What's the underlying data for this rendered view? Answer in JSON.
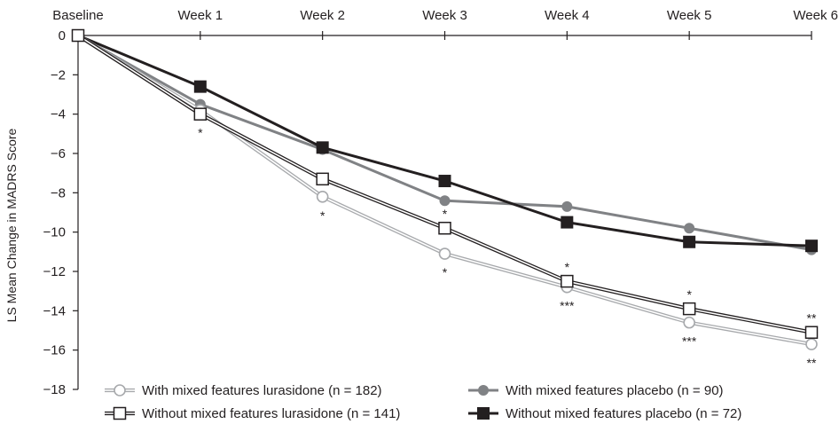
{
  "chart_data": {
    "type": "line",
    "title": "",
    "xlabel": "",
    "ylabel": "LS Mean Change in MADRS Score",
    "categories": [
      "Baseline",
      "Week 1",
      "Week 2",
      "Week 3",
      "Week 4",
      "Week 5",
      "Week 6"
    ],
    "ylim": [
      -18,
      0
    ],
    "yticks": [
      0,
      -2,
      -4,
      -6,
      -8,
      -10,
      -12,
      -14,
      -16,
      -18
    ],
    "ytick_labels": [
      "0",
      "−2",
      "−4",
      "−6",
      "−8",
      "−10",
      "−12",
      "−14",
      "−16",
      "−18"
    ],
    "grid": false,
    "legend_position": "bottom",
    "series": [
      {
        "name": "With mixed features lurasidone (n = 182)",
        "marker": "circle-open",
        "color": "#a7a9ac",
        "values": [
          0,
          -3.8,
          -8.2,
          -11.1,
          -12.8,
          -14.6,
          -15.7
        ],
        "annotations": [
          "",
          "",
          "*",
          "*",
          "***",
          "***",
          "**"
        ]
      },
      {
        "name": "With mixed features placebo (n = 90)",
        "marker": "circle-filled",
        "color": "#808285",
        "values": [
          0,
          -3.5,
          -5.8,
          -8.4,
          -8.7,
          -9.8,
          -10.9
        ],
        "annotations": [
          "",
          "",
          "",
          "",
          "",
          "",
          ""
        ]
      },
      {
        "name": "Without mixed features lurasidone (n = 141)",
        "marker": "square-open",
        "color": "#231f20",
        "values": [
          0,
          -4.0,
          -7.3,
          -9.8,
          -12.5,
          -13.9,
          -15.1
        ],
        "annotations": [
          "",
          "*",
          "",
          "*",
          "*",
          "*",
          "**"
        ]
      },
      {
        "name": "Without mixed features placebo (n = 72)",
        "marker": "square-filled",
        "color": "#231f20",
        "values": [
          0,
          -2.6,
          -5.7,
          -7.4,
          -9.5,
          -10.5,
          -10.7
        ],
        "annotations": [
          "",
          "",
          "",
          "",
          "",
          "",
          ""
        ]
      }
    ]
  }
}
